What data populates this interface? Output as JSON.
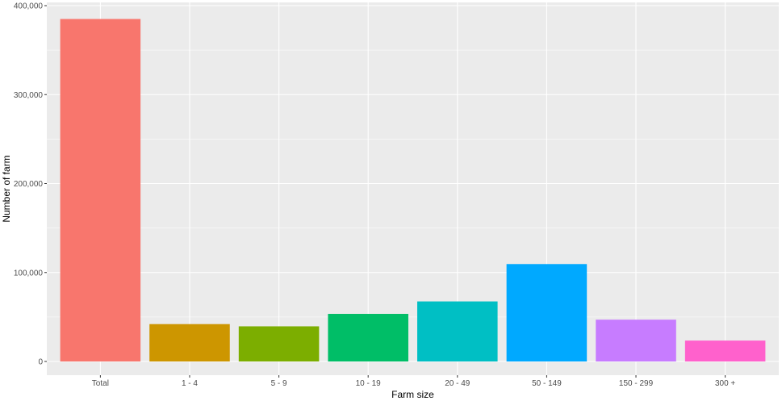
{
  "chart_data": {
    "type": "bar",
    "xlabel": "Farm size",
    "ylabel": "Number of farm",
    "categories": [
      "Total",
      "1 - 4",
      "5 - 9",
      "10 - 19",
      "20 - 49",
      "50 - 149",
      "150 - 299",
      "300 +"
    ],
    "values": [
      385000,
      42000,
      39500,
      53500,
      67500,
      109500,
      47000,
      23500
    ],
    "colors": [
      "#F8766D",
      "#CD9600",
      "#7CAE00",
      "#00BE67",
      "#00BFC4",
      "#00A9FF",
      "#C77CFF",
      "#FF61CC"
    ],
    "ylim": [
      0,
      400000
    ],
    "yticks": [
      0,
      100000,
      200000,
      300000,
      400000
    ],
    "ytick_labels": [
      "0",
      "100,000",
      "200,000",
      "300,000",
      "400,000"
    ],
    "grid": true,
    "legend": "none",
    "panel_background": "#EBEBEB"
  }
}
